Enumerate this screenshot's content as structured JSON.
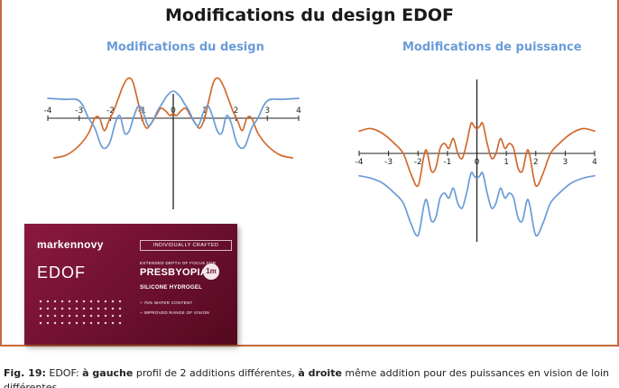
{
  "title": "Modifications du design EDOF",
  "chart_data": [
    {
      "type": "line",
      "title": "Modifications du design",
      "x_ticks": [
        -4,
        -3,
        -2,
        -1,
        0,
        1,
        2,
        3,
        4
      ],
      "xlim": [
        -4,
        4
      ],
      "series": [
        {
          "color": "#d2692e",
          "x": [
            -3.8,
            -3.4,
            -3.0,
            -2.7,
            -2.5,
            -2.35,
            -2.2,
            -2.05,
            -1.9,
            -1.75,
            -1.6,
            -1.45,
            -1.3,
            -1.15,
            -1.0,
            -0.85,
            -0.7,
            -0.55,
            -0.4,
            -0.25,
            -0.1,
            0,
            0.1,
            0.25,
            0.4,
            0.55,
            0.7,
            0.85,
            1.0,
            1.15,
            1.3,
            1.45,
            1.6,
            1.75,
            1.9,
            2.05,
            2.2,
            2.35,
            2.5,
            2.7,
            3.0,
            3.4,
            3.8
          ],
          "y": [
            -0.8,
            -0.74,
            -0.55,
            -0.3,
            0.0,
            0.0,
            -0.25,
            -0.05,
            0.15,
            0.4,
            0.65,
            0.8,
            0.75,
            0.4,
            0.0,
            -0.2,
            -0.1,
            0.05,
            0.2,
            0.15,
            0.05,
            0.1,
            0.05,
            0.15,
            0.2,
            0.05,
            -0.1,
            -0.2,
            0.0,
            0.4,
            0.75,
            0.8,
            0.65,
            0.4,
            0.15,
            -0.05,
            -0.25,
            0.0,
            0.0,
            -0.3,
            -0.55,
            -0.74,
            -0.8
          ]
        },
        {
          "color": "#6a9bd8",
          "x": [
            -4.0,
            -3.5,
            -3.0,
            -2.7,
            -2.5,
            -2.3,
            -2.15,
            -2.0,
            -1.85,
            -1.7,
            -1.55,
            -1.4,
            -1.25,
            -1.1,
            -0.95,
            -0.8,
            -0.65,
            -0.5,
            -0.35,
            -0.2,
            0,
            0.2,
            0.35,
            0.5,
            0.65,
            0.8,
            0.95,
            1.1,
            1.25,
            1.4,
            1.55,
            1.7,
            1.85,
            2.0,
            2.15,
            2.3,
            2.5,
            2.7,
            3.0,
            3.5,
            4.0
          ],
          "y": [
            0.4,
            0.38,
            0.35,
            0.0,
            -0.2,
            -0.55,
            -0.6,
            -0.45,
            -0.1,
            0.05,
            -0.3,
            -0.25,
            0.05,
            0.25,
            0.1,
            -0.15,
            -0.05,
            0.15,
            0.3,
            0.45,
            0.55,
            0.45,
            0.3,
            0.15,
            -0.05,
            -0.15,
            0.1,
            0.25,
            0.05,
            -0.25,
            -0.3,
            0.05,
            -0.1,
            -0.45,
            -0.6,
            -0.55,
            -0.2,
            0.0,
            0.35,
            0.38,
            0.4
          ]
        }
      ]
    },
    {
      "type": "line",
      "title": "Modifications de puissance",
      "x_ticks": [
        -4,
        -3,
        -2,
        -1,
        0,
        1,
        2,
        3,
        4
      ],
      "xlim": [
        -4,
        4
      ],
      "series": [
        {
          "color": "#d2692e",
          "x": [
            -4.0,
            -3.6,
            -3.2,
            -2.8,
            -2.5,
            -2.25,
            -2.0,
            -1.8,
            -1.7,
            -1.55,
            -1.4,
            -1.25,
            -1.1,
            -0.95,
            -0.8,
            -0.65,
            -0.5,
            -0.35,
            -0.2,
            -0.1,
            0,
            0.1,
            0.2,
            0.35,
            0.5,
            0.65,
            0.8,
            0.95,
            1.1,
            1.25,
            1.4,
            1.55,
            1.7,
            1.8,
            2.0,
            2.25,
            2.5,
            2.8,
            3.2,
            3.6,
            4.0
          ],
          "y": [
            0.45,
            0.5,
            0.4,
            0.2,
            0.0,
            -0.4,
            -0.65,
            -0.05,
            0.05,
            -0.35,
            -0.3,
            0.1,
            0.2,
            0.1,
            0.3,
            0.0,
            -0.1,
            0.2,
            0.6,
            0.55,
            0.5,
            0.55,
            0.6,
            0.2,
            -0.1,
            0.0,
            0.3,
            0.1,
            0.2,
            0.1,
            -0.3,
            -0.35,
            0.05,
            -0.05,
            -0.65,
            -0.4,
            0.0,
            0.2,
            0.4,
            0.5,
            0.45
          ]
        },
        {
          "color": "#6a9bd8",
          "x": [
            -4.0,
            -3.6,
            -3.2,
            -2.8,
            -2.5,
            -2.25,
            -2.0,
            -1.8,
            -1.7,
            -1.55,
            -1.4,
            -1.25,
            -1.1,
            -0.95,
            -0.8,
            -0.65,
            -0.5,
            -0.35,
            -0.2,
            -0.1,
            0,
            0.1,
            0.2,
            0.35,
            0.5,
            0.65,
            0.8,
            0.95,
            1.1,
            1.25,
            1.4,
            1.55,
            1.7,
            1.8,
            2.0,
            2.25,
            2.5,
            2.8,
            3.2,
            3.6,
            4.0
          ],
          "y": [
            -0.45,
            -0.5,
            -0.6,
            -0.8,
            -1.0,
            -1.4,
            -1.65,
            -1.05,
            -0.95,
            -1.35,
            -1.3,
            -0.9,
            -0.8,
            -0.9,
            -0.7,
            -1.0,
            -1.1,
            -0.8,
            -0.4,
            -0.45,
            -0.5,
            -0.45,
            -0.4,
            -0.8,
            -1.1,
            -1.0,
            -0.7,
            -0.9,
            -0.8,
            -0.9,
            -1.3,
            -1.35,
            -0.95,
            -1.05,
            -1.65,
            -1.4,
            -1.0,
            -0.8,
            -0.6,
            -0.5,
            -0.45
          ]
        }
      ]
    }
  ],
  "product": {
    "brand": "markennovy",
    "crafted": "INDIVIDUALLY CRAFTED",
    "name": "EDOF",
    "extended": "EXTENDED DEPTH OF FOCUS FOR",
    "presbyopia": "PRESBYOPIA",
    "badge": "1m",
    "material": "SILICONE HYDROGEL",
    "bullet1": "+ 75% WATER CONTENT",
    "bullet2": "+ IMPROVED RANGE OF VISION"
  },
  "caption": {
    "fig": "Fig. 19:",
    "t1": " EDOF: ",
    "b1": "à gauche",
    "t2": " profil de 2 additions différentes, ",
    "b2": "à droite",
    "t3": " même addition pour des puissances en vision de loin différentes."
  }
}
